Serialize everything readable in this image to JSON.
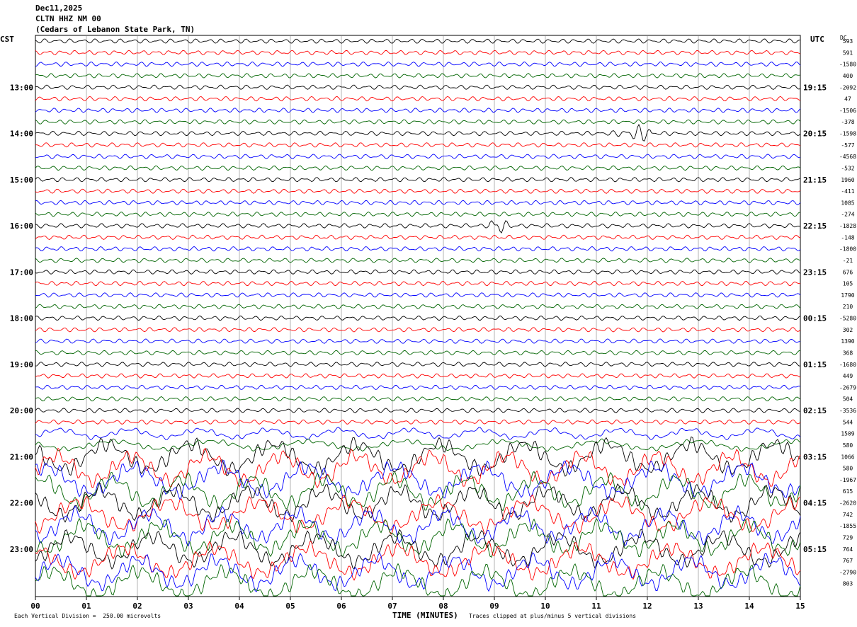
{
  "header": {
    "date": "Dec11,2025",
    "station": "CLTN HHZ NM 00",
    "location": "(Cedars of Lebanon State Park, TN)"
  },
  "left_zone": "CST",
  "right_zone": "UTC",
  "dc_label": "DC",
  "footer": {
    "scale_note": "Each Vertical Division =  250.00 microvolts",
    "xaxis_title": "TIME (MINUTES)",
    "clip_note": "Traces clipped at plus/minus 5 vertical divisions"
  },
  "colors": {
    "black": "#000000",
    "red": "#ff0000",
    "blue": "#0000ff",
    "green": "#006400",
    "grid": "#808080"
  },
  "chart_data": {
    "type": "line",
    "title": "CLTN HHZ NM 00",
    "x_ticks": [
      "00",
      "01",
      "02",
      "03",
      "04",
      "05",
      "06",
      "07",
      "08",
      "09",
      "10",
      "11",
      "12",
      "13",
      "14",
      "15"
    ],
    "xlim": [
      0,
      15
    ],
    "trace_count": 48,
    "trace_colors_cycle": [
      "black",
      "red",
      "blue",
      "green"
    ],
    "left_hour_labels": [
      "13:00",
      "14:00",
      "15:00",
      "16:00",
      "17:00",
      "18:00",
      "19:00",
      "20:00",
      "21:00",
      "22:00",
      "23:00"
    ],
    "right_hour_labels": [
      "19:15",
      "20:15",
      "21:15",
      "22:15",
      "23:15",
      "00:15",
      "01:15",
      "02:15",
      "03:15",
      "04:15",
      "05:15"
    ],
    "dc_offsets": [
      "593",
      "591",
      "-1580",
      "400",
      "-2092",
      "47",
      "-1506",
      "-378",
      "-1598",
      "-577",
      "-4568",
      "-532",
      "1960",
      "-411",
      "1085",
      "-274",
      "-1828",
      "-148",
      "-1800",
      "-21",
      "676",
      "105",
      "1790",
      "210",
      "-5280",
      "302",
      "1390",
      "368",
      "-1680",
      "449",
      "-2679",
      "504",
      "-3536",
      "544",
      "1509",
      "580",
      "1066",
      "580",
      "-1967",
      "615",
      "-2620",
      "742",
      "-1855",
      "729",
      "764",
      "767",
      "-2790",
      "803"
    ]
  }
}
